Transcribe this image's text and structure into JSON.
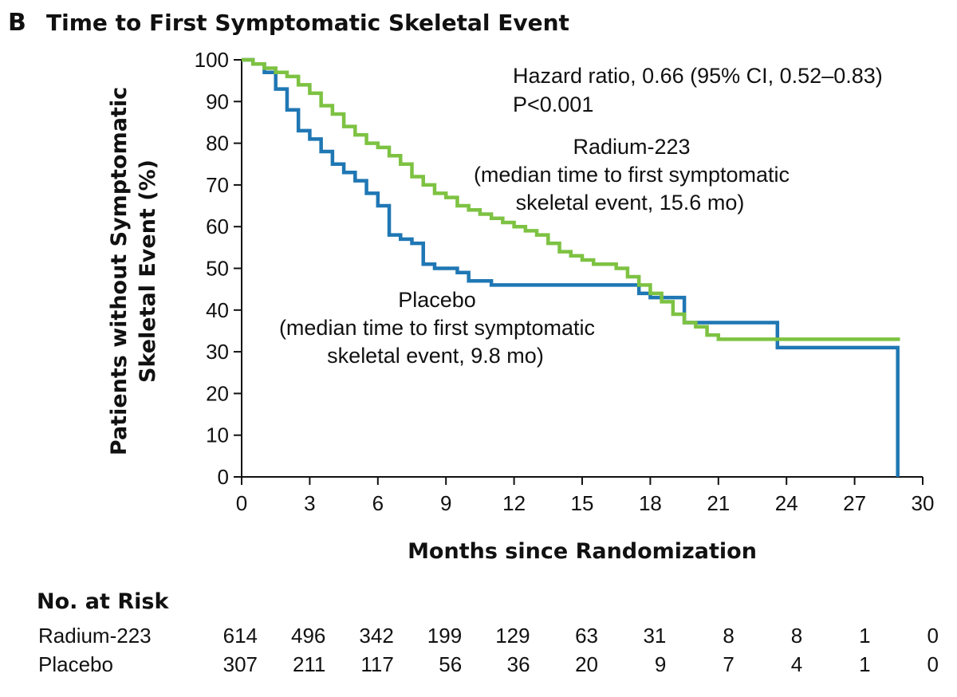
{
  "panel_letter": "B",
  "colors": {
    "radium": "#7dc242",
    "placebo": "#1f77b4",
    "axis": "#111111"
  },
  "chart_data": {
    "type": "line",
    "title": "Time to First Symptomatic Skeletal Event",
    "xlabel": "Months since Randomization",
    "ylabel_line1": "Patients without Symptomatic",
    "ylabel_line2": "Skeletal Event (%)",
    "xlim": [
      0,
      30
    ],
    "ylim": [
      0,
      100
    ],
    "xticks": [
      "0",
      "3",
      "6",
      "9",
      "12",
      "15",
      "18",
      "21",
      "24",
      "27",
      "30"
    ],
    "yticks": [
      "0",
      "10",
      "20",
      "30",
      "40",
      "50",
      "60",
      "70",
      "80",
      "90",
      "100"
    ],
    "stats_line1": "Hazard ratio, 0.66 (95% CI, 0.52–0.83)",
    "stats_line2": "P<0.001",
    "series": [
      {
        "name": "Radium-223",
        "label_line1": "Radium-223",
        "label_line2": "(median time to first symptomatic",
        "label_line3": "skeletal event, 15.6 mo)",
        "x": [
          0,
          0.5,
          1,
          1.5,
          2,
          2.5,
          3,
          3.5,
          4,
          4.5,
          5,
          5.5,
          6,
          6.5,
          7,
          7.5,
          8,
          8.5,
          9,
          9.5,
          10,
          10.5,
          11,
          11.5,
          12,
          12.5,
          13,
          13.5,
          14,
          14.5,
          15,
          15.5,
          16,
          16.5,
          17,
          17.5,
          18,
          18.5,
          19,
          19.5,
          20,
          20.5,
          21,
          22,
          23,
          24,
          25,
          26,
          27,
          28,
          29
        ],
        "y": [
          100,
          99,
          98,
          97,
          96,
          94,
          92,
          89,
          87,
          84,
          82,
          80,
          79,
          77,
          75,
          72,
          70,
          68,
          67,
          65,
          64,
          63,
          62,
          61,
          60,
          59,
          58,
          56,
          54,
          53,
          52,
          51,
          51,
          50,
          48,
          46,
          44,
          42,
          39,
          37,
          36,
          34,
          33,
          33,
          33,
          33,
          33,
          33,
          33,
          33,
          33
        ]
      },
      {
        "name": "Placebo",
        "label_line1": "Placebo",
        "label_line2": "(median time to first symptomatic",
        "label_line3": "skeletal event, 9.8 mo)",
        "x": [
          0,
          0.5,
          1,
          1.5,
          2,
          2.5,
          3,
          3.5,
          4,
          4.5,
          5,
          5.5,
          6,
          6.5,
          7,
          7.5,
          8,
          8.5,
          9,
          9.5,
          10,
          10.5,
          11,
          12,
          13,
          14,
          15,
          16,
          17,
          17.5,
          18,
          19,
          19.5,
          20,
          21,
          22,
          23,
          23.6,
          24,
          25,
          26,
          27,
          28,
          28.9,
          28.9
        ],
        "y": [
          100,
          99,
          97,
          93,
          88,
          83,
          81,
          78,
          75,
          73,
          71,
          68,
          65,
          58,
          57,
          56,
          51,
          50,
          50,
          49,
          47,
          47,
          46,
          46,
          46,
          46,
          46,
          46,
          46,
          44,
          43,
          43,
          37,
          37,
          37,
          37,
          37,
          31,
          31,
          31,
          31,
          31,
          31,
          31,
          0
        ]
      }
    ],
    "risk_table": {
      "title": "No. at Risk",
      "rows": [
        {
          "label": "Radium-223",
          "values": [
            "614",
            "496",
            "342",
            "199",
            "129",
            "63",
            "31",
            "8",
            "8",
            "1",
            "0"
          ]
        },
        {
          "label": "Placebo",
          "values": [
            "307",
            "211",
            "117",
            "56",
            "36",
            "20",
            "9",
            "7",
            "4",
            "1",
            "0"
          ]
        }
      ]
    }
  }
}
